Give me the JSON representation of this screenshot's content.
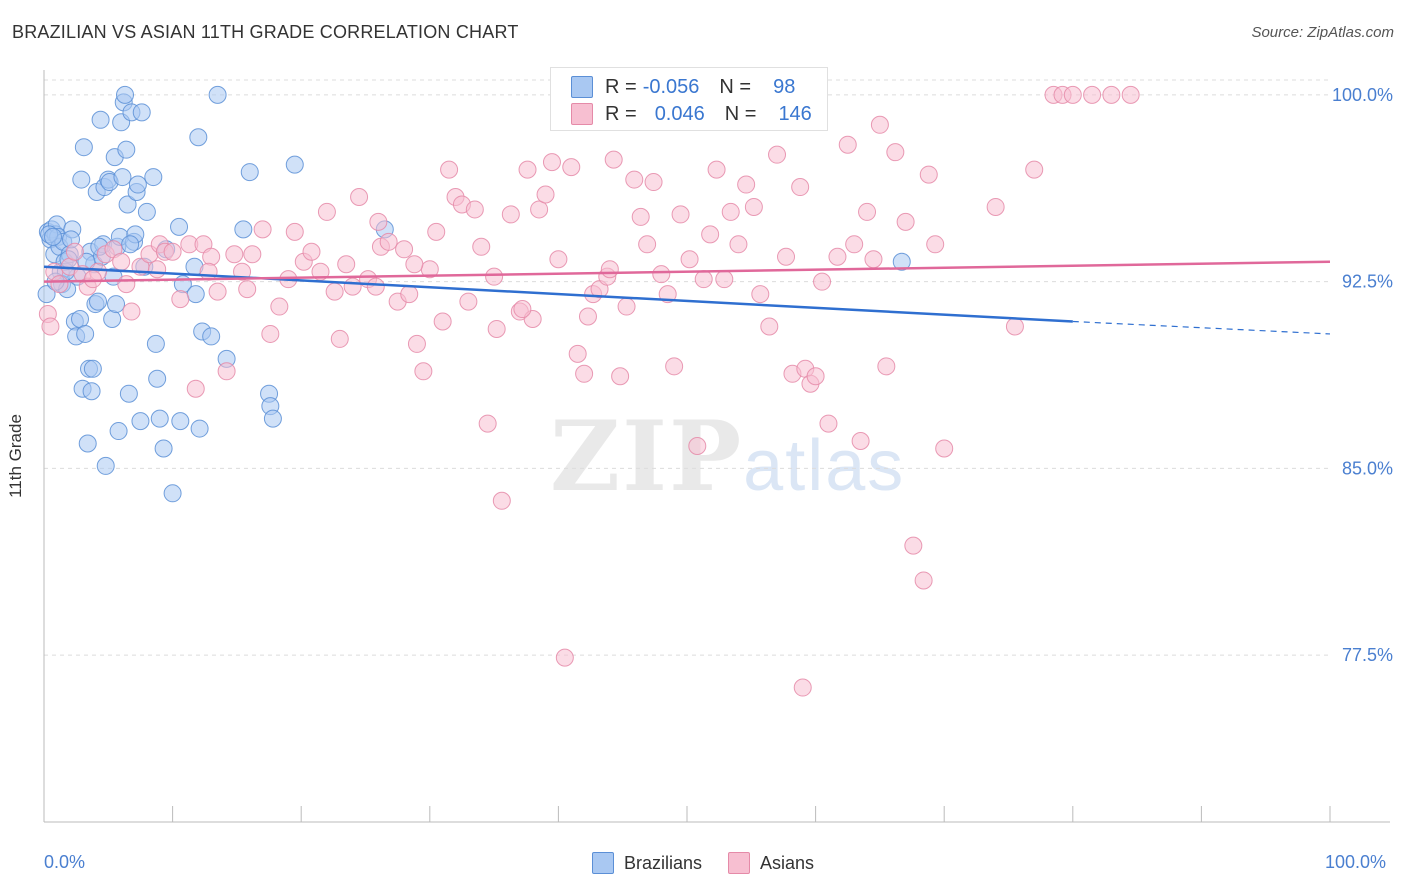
{
  "title": "BRAZILIAN VS ASIAN 11TH GRADE CORRELATION CHART",
  "source": "Source: ZipAtlas.com",
  "watermark": {
    "zip": "ZIP",
    "atlas": "atlas"
  },
  "legend_top": {
    "rows": [
      {
        "r_key": "R =",
        "r_value": "-0.056",
        "n_key": "N =",
        "n_value": "98",
        "color": "#a9c8f2",
        "border": "#5b8fd6"
      },
      {
        "r_key": "R =",
        "r_value": "0.046",
        "n_key": "N =",
        "n_value": "146",
        "color": "#f7bfd1",
        "border": "#e58aa8"
      }
    ]
  },
  "chart_data": {
    "type": "scatter",
    "title": "BRAZILIAN VS ASIAN 11TH GRADE CORRELATION CHART",
    "xlabel": "",
    "ylabel": "11th Grade",
    "xlim": [
      0,
      100
    ],
    "ylim": [
      70.8,
      101.0
    ],
    "x_tick_labels": [
      "0.0%",
      "100.0%"
    ],
    "y_ticks": [
      77.5,
      85.0,
      92.5,
      100.0
    ],
    "y_tick_labels": [
      "77.5%",
      "85.0%",
      "92.5%",
      "100.0%"
    ],
    "grid": true,
    "legend_position": "bottom",
    "series": [
      {
        "name": "Brazilians",
        "color": "#5b8fd6",
        "fill": "#a9c8f2",
        "trend": {
          "x": [
            0,
            80
          ],
          "y": [
            93.1,
            90.9
          ],
          "dashed_to": [
            100,
            90.4
          ]
        },
        "points": [
          [
            0.3,
            94.5
          ],
          [
            0.5,
            94.2
          ],
          [
            0.6,
            94.6
          ],
          [
            0.8,
            93.6
          ],
          [
            0.9,
            94.4
          ],
          [
            1.0,
            94.8
          ],
          [
            1.1,
            94.3
          ],
          [
            1.2,
            93.9
          ],
          [
            1.3,
            92.9
          ],
          [
            1.4,
            92.4
          ],
          [
            1.5,
            94.1
          ],
          [
            1.6,
            93.3
          ],
          [
            1.8,
            92.2
          ],
          [
            2.0,
            93.6
          ],
          [
            2.2,
            94.6
          ],
          [
            2.4,
            90.9
          ],
          [
            2.5,
            90.3
          ],
          [
            2.6,
            92.7
          ],
          [
            2.8,
            91.0
          ],
          [
            2.9,
            96.6
          ],
          [
            3.0,
            88.2
          ],
          [
            3.1,
            97.9
          ],
          [
            3.2,
            90.4
          ],
          [
            3.4,
            86.0
          ],
          [
            3.5,
            89.0
          ],
          [
            3.6,
            93.7
          ],
          [
            3.7,
            88.1
          ],
          [
            3.8,
            89.0
          ],
          [
            3.9,
            93.2
          ],
          [
            4.0,
            91.6
          ],
          [
            4.1,
            96.1
          ],
          [
            4.2,
            91.7
          ],
          [
            4.4,
            99.0
          ],
          [
            4.5,
            93.5
          ],
          [
            4.6,
            94.0
          ],
          [
            4.7,
            96.3
          ],
          [
            4.8,
            85.1
          ],
          [
            5.0,
            96.6
          ],
          [
            5.1,
            96.5
          ],
          [
            5.3,
            91.0
          ],
          [
            5.5,
            97.5
          ],
          [
            5.6,
            91.6
          ],
          [
            5.7,
            93.9
          ],
          [
            5.8,
            86.5
          ],
          [
            5.9,
            94.3
          ],
          [
            6.0,
            98.9
          ],
          [
            6.1,
            96.7
          ],
          [
            6.2,
            99.7
          ],
          [
            6.3,
            100.0
          ],
          [
            6.4,
            97.8
          ],
          [
            6.5,
            95.6
          ],
          [
            6.6,
            88.0
          ],
          [
            6.8,
            99.3
          ],
          [
            7.0,
            94.1
          ],
          [
            7.1,
            94.4
          ],
          [
            7.2,
            96.1
          ],
          [
            7.3,
            96.4
          ],
          [
            7.5,
            86.9
          ],
          [
            7.6,
            99.3
          ],
          [
            8.0,
            95.3
          ],
          [
            8.5,
            96.7
          ],
          [
            8.7,
            90.0
          ],
          [
            8.8,
            88.6
          ],
          [
            9.0,
            87.0
          ],
          [
            9.3,
            85.8
          ],
          [
            10.0,
            84.0
          ],
          [
            10.5,
            94.7
          ],
          [
            10.6,
            86.9
          ],
          [
            10.8,
            92.4
          ],
          [
            11.7,
            93.1
          ],
          [
            11.8,
            92.0
          ],
          [
            12.0,
            98.3
          ],
          [
            12.1,
            86.6
          ],
          [
            12.3,
            90.5
          ],
          [
            13.0,
            90.3
          ],
          [
            13.5,
            100.0
          ],
          [
            14.2,
            89.4
          ],
          [
            15.5,
            94.6
          ],
          [
            16.0,
            96.9
          ],
          [
            17.5,
            88.0
          ],
          [
            17.6,
            87.5
          ],
          [
            17.8,
            87.0
          ],
          [
            19.5,
            97.2
          ],
          [
            26.5,
            94.6
          ],
          [
            66.7,
            93.3
          ],
          [
            0.4,
            94.4
          ],
          [
            0.7,
            94.3
          ],
          [
            1.7,
            92.9
          ],
          [
            2.1,
            94.2
          ],
          [
            3.3,
            93.3
          ],
          [
            4.3,
            93.9
          ],
          [
            5.4,
            92.7
          ],
          [
            6.7,
            94.0
          ],
          [
            7.8,
            93.1
          ],
          [
            9.5,
            93.8
          ],
          [
            0.2,
            92.0
          ],
          [
            0.9,
            92.5
          ],
          [
            1.9,
            93.4
          ]
        ]
      },
      {
        "name": "Asians",
        "color": "#e58aa8",
        "fill": "#f7bfd1",
        "trend": {
          "x": [
            0,
            100
          ],
          "y": [
            92.5,
            93.3
          ]
        },
        "points": [
          [
            0.3,
            91.2
          ],
          [
            0.5,
            90.7
          ],
          [
            0.8,
            92.9
          ],
          [
            1.2,
            92.4
          ],
          [
            2.0,
            93.1
          ],
          [
            2.4,
            93.7
          ],
          [
            3.0,
            92.8
          ],
          [
            3.4,
            92.3
          ],
          [
            4.2,
            92.9
          ],
          [
            4.8,
            93.6
          ],
          [
            5.4,
            93.8
          ],
          [
            6.0,
            93.3
          ],
          [
            6.8,
            91.3
          ],
          [
            7.5,
            93.1
          ],
          [
            8.2,
            93.6
          ],
          [
            9.0,
            94.0
          ],
          [
            9.4,
            93.7
          ],
          [
            10.0,
            93.7
          ],
          [
            10.6,
            91.8
          ],
          [
            11.3,
            94.0
          ],
          [
            11.8,
            88.2
          ],
          [
            12.4,
            94.0
          ],
          [
            13.0,
            93.5
          ],
          [
            13.5,
            92.1
          ],
          [
            14.2,
            88.9
          ],
          [
            14.8,
            93.6
          ],
          [
            15.4,
            92.9
          ],
          [
            16.2,
            93.6
          ],
          [
            17.0,
            94.6
          ],
          [
            17.6,
            90.4
          ],
          [
            18.3,
            91.5
          ],
          [
            19.0,
            92.6
          ],
          [
            19.5,
            94.5
          ],
          [
            20.2,
            93.3
          ],
          [
            20.8,
            93.7
          ],
          [
            21.5,
            92.9
          ],
          [
            22.0,
            95.3
          ],
          [
            22.6,
            92.1
          ],
          [
            23.0,
            90.2
          ],
          [
            23.5,
            93.2
          ],
          [
            24.0,
            92.3
          ],
          [
            24.5,
            95.9
          ],
          [
            25.2,
            92.6
          ],
          [
            25.8,
            92.3
          ],
          [
            26.2,
            93.9
          ],
          [
            26.8,
            94.1
          ],
          [
            27.5,
            91.7
          ],
          [
            28.0,
            93.8
          ],
          [
            28.4,
            92.0
          ],
          [
            29.0,
            90.0
          ],
          [
            29.5,
            88.9
          ],
          [
            30.0,
            93.0
          ],
          [
            30.5,
            94.5
          ],
          [
            31.0,
            90.9
          ],
          [
            31.5,
            97.0
          ],
          [
            32.0,
            95.9
          ],
          [
            32.5,
            95.6
          ],
          [
            33.0,
            91.7
          ],
          [
            33.5,
            95.4
          ],
          [
            34.0,
            93.9
          ],
          [
            34.5,
            86.8
          ],
          [
            35.0,
            92.7
          ],
          [
            35.6,
            83.7
          ],
          [
            36.3,
            95.2
          ],
          [
            37.0,
            91.3
          ],
          [
            37.6,
            97.0
          ],
          [
            38.0,
            91.0
          ],
          [
            38.5,
            95.4
          ],
          [
            39.0,
            96.0
          ],
          [
            39.5,
            97.3
          ],
          [
            40.0,
            93.4
          ],
          [
            40.5,
            77.4
          ],
          [
            41.0,
            97.1
          ],
          [
            41.5,
            89.6
          ],
          [
            42.0,
            88.8
          ],
          [
            42.7,
            92.0
          ],
          [
            43.2,
            92.2
          ],
          [
            43.8,
            92.7
          ],
          [
            44.3,
            97.4
          ],
          [
            44.8,
            88.7
          ],
          [
            45.3,
            91.5
          ],
          [
            45.9,
            96.6
          ],
          [
            46.4,
            95.1
          ],
          [
            46.9,
            94.0
          ],
          [
            47.4,
            96.5
          ],
          [
            48.0,
            92.8
          ],
          [
            48.5,
            92.0
          ],
          [
            49.0,
            89.1
          ],
          [
            49.5,
            95.2
          ],
          [
            50.2,
            93.4
          ],
          [
            50.8,
            85.9
          ],
          [
            51.3,
            92.6
          ],
          [
            51.8,
            94.4
          ],
          [
            52.3,
            97.0
          ],
          [
            52.9,
            92.6
          ],
          [
            53.4,
            95.3
          ],
          [
            54.0,
            94.0
          ],
          [
            54.6,
            96.4
          ],
          [
            55.2,
            95.5
          ],
          [
            55.7,
            92.0
          ],
          [
            56.4,
            90.7
          ],
          [
            57.0,
            97.6
          ],
          [
            57.7,
            93.5
          ],
          [
            58.2,
            88.8
          ],
          [
            58.8,
            96.3
          ],
          [
            59.2,
            89.0
          ],
          [
            59.6,
            88.4
          ],
          [
            60.0,
            88.7
          ],
          [
            60.5,
            92.5
          ],
          [
            61.0,
            86.8
          ],
          [
            61.7,
            93.5
          ],
          [
            62.5,
            98.0
          ],
          [
            63.0,
            94.0
          ],
          [
            63.5,
            86.1
          ],
          [
            64.0,
            95.3
          ],
          [
            64.5,
            93.4
          ],
          [
            65.0,
            98.8
          ],
          [
            65.5,
            89.1
          ],
          [
            66.2,
            97.7
          ],
          [
            67.0,
            94.9
          ],
          [
            67.6,
            81.9
          ],
          [
            68.4,
            80.5
          ],
          [
            68.8,
            96.8
          ],
          [
            69.3,
            94.0
          ],
          [
            70.0,
            85.8
          ],
          [
            74.0,
            95.5
          ],
          [
            75.5,
            90.7
          ],
          [
            77.0,
            97.0
          ],
          [
            78.5,
            100.0
          ],
          [
            79.2,
            100.0
          ],
          [
            80.0,
            100.0
          ],
          [
            81.5,
            100.0
          ],
          [
            83.0,
            100.0
          ],
          [
            84.5,
            100.0
          ],
          [
            59.0,
            76.2
          ],
          [
            37.2,
            91.4
          ],
          [
            42.3,
            91.1
          ],
          [
            44.0,
            93.0
          ],
          [
            35.2,
            90.6
          ],
          [
            26.0,
            94.9
          ],
          [
            28.8,
            93.2
          ],
          [
            15.8,
            92.2
          ],
          [
            12.8,
            92.9
          ],
          [
            8.8,
            93.0
          ],
          [
            6.4,
            92.4
          ],
          [
            3.8,
            92.6
          ]
        ]
      }
    ]
  },
  "legend_bottom": [
    {
      "label": "Brazilians",
      "color": "#a9c8f2",
      "border": "#5b8fd6"
    },
    {
      "label": "Asians",
      "color": "#f7bfd1",
      "border": "#e58aa8"
    }
  ]
}
